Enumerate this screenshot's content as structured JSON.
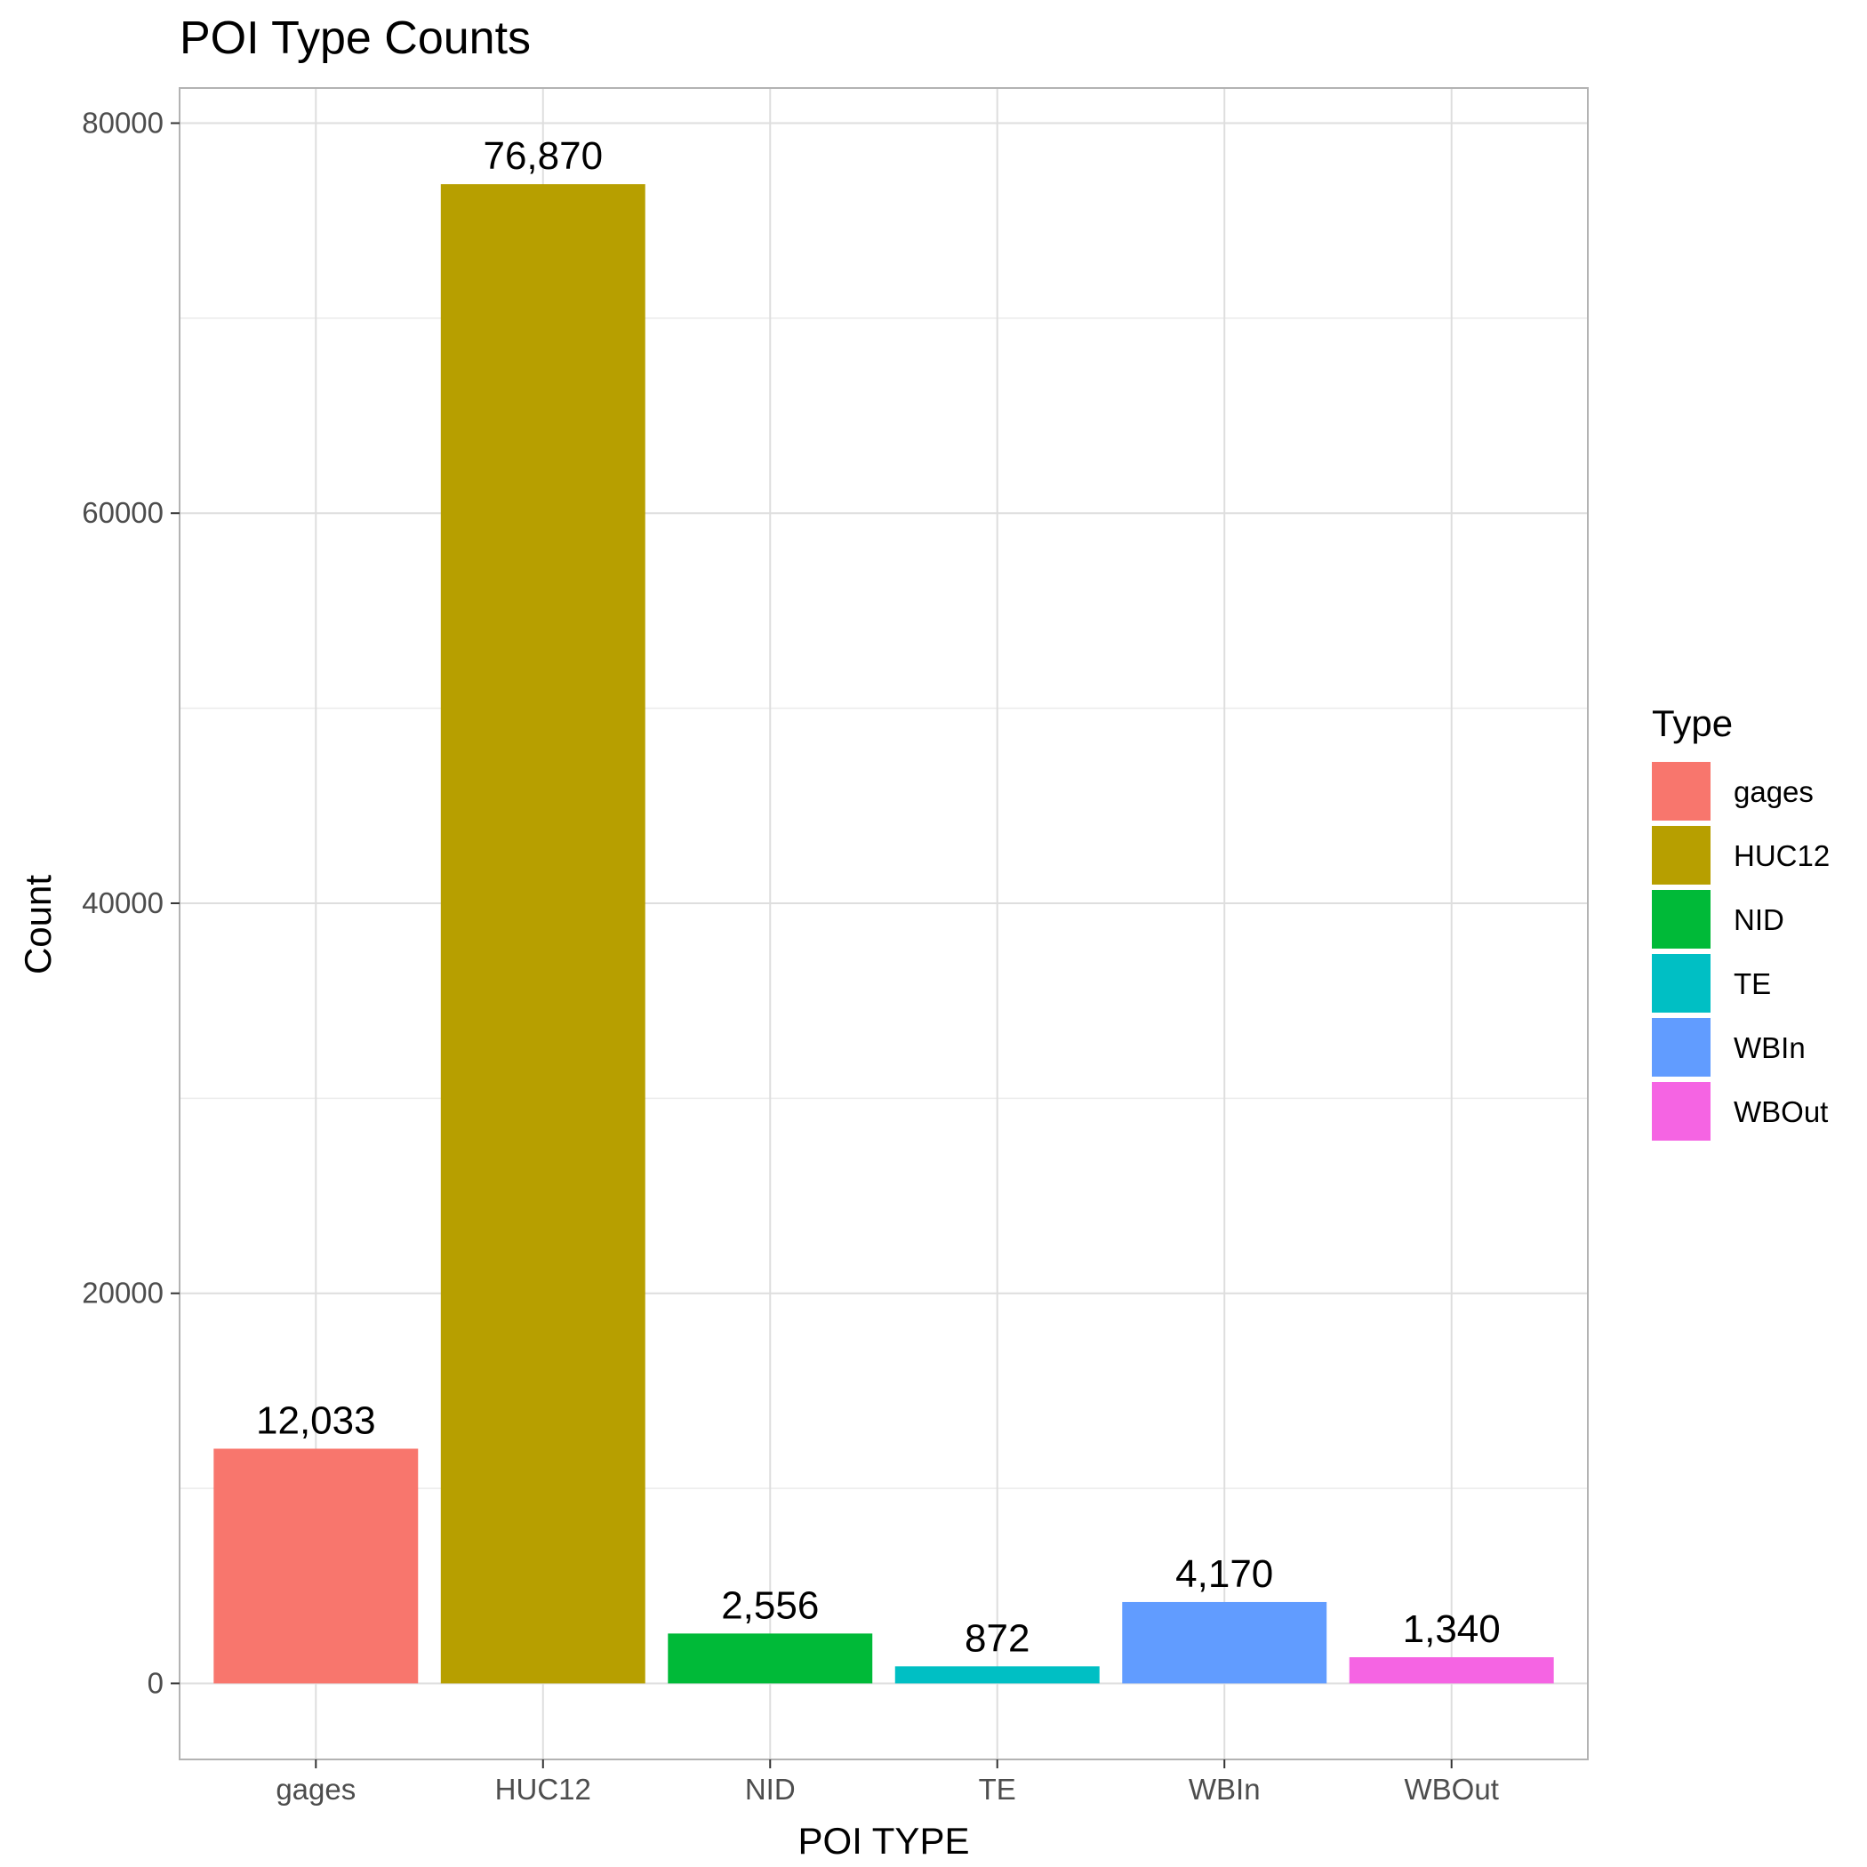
{
  "chart_data": {
    "type": "bar",
    "title": "POI Type Counts",
    "xlabel": "POI TYPE",
    "ylabel": "Count",
    "categories": [
      "gages",
      "HUC12",
      "NID",
      "TE",
      "WBIn",
      "WBOut"
    ],
    "values": [
      12033,
      76870,
      2556,
      872,
      4170,
      1340
    ],
    "data_labels": [
      "12,033",
      "76,870",
      "2,556",
      "872",
      "4,170",
      "1,340"
    ],
    "colors": [
      "#F8766D",
      "#B79F00",
      "#00BA38",
      "#00BFC4",
      "#619CFF",
      "#F564E3"
    ],
    "ylim": [
      -3900,
      81800
    ],
    "yticks": [
      0,
      20000,
      40000,
      60000,
      80000
    ],
    "ytick_labels": [
      "0",
      "20000",
      "40000",
      "60000",
      "80000"
    ],
    "grid": true,
    "legend": {
      "title": "Type",
      "position": "right",
      "entries": [
        "gages",
        "HUC12",
        "NID",
        "TE",
        "WBIn",
        "WBOut"
      ]
    }
  }
}
